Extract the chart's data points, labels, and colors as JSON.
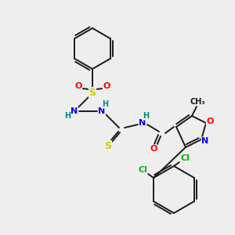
{
  "bg_color": "#eeeeee",
  "bond_color": "#1a1a1a",
  "colors": {
    "N": "#0000ee",
    "O": "#ff0000",
    "S": "#cccc00",
    "Cl": "#00bb00",
    "H": "#008888",
    "C": "#1a1a1a"
  }
}
